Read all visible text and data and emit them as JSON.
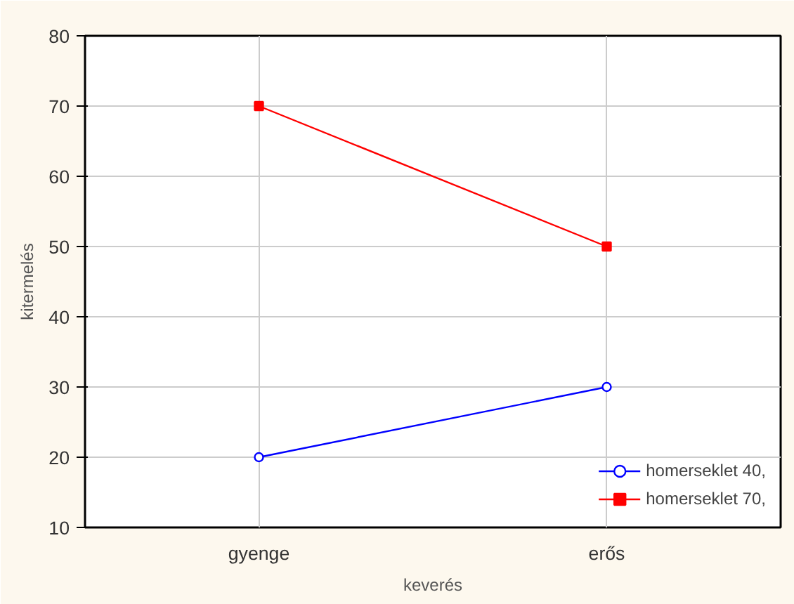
{
  "chart_data": {
    "type": "line",
    "xlabel": "keverés",
    "ylabel": "kitermelés",
    "categories": [
      "gyenge",
      "erős"
    ],
    "series": [
      {
        "name": "homerseklet 40,",
        "color": "#0000ff",
        "values": [
          20,
          30
        ],
        "marker": "circle"
      },
      {
        "name": "homerseklet 70,",
        "color": "#ff0000",
        "values": [
          70,
          50
        ],
        "marker": "square"
      }
    ],
    "ylim": [
      10,
      80
    ],
    "yticks": [
      10,
      20,
      30,
      40,
      50,
      60,
      70,
      80
    ],
    "grid": true,
    "legend": "bottom right"
  }
}
